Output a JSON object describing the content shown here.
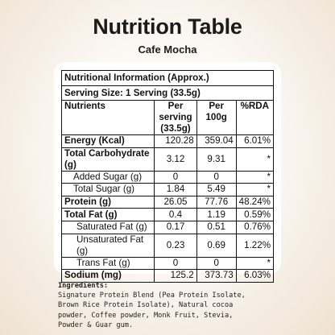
{
  "title": "Nutrition Table",
  "subtitle": "Cafe Mocha",
  "table": {
    "info": "Nutritional Information (Approx.)",
    "serving": "Serving Size: 1 Serving (33.5g)",
    "headers": {
      "nutrients": "Nutrients",
      "per_serving": [
        "Per",
        "serving",
        "(33.5g)"
      ],
      "per_100g": [
        "Per",
        "100g"
      ],
      "rda": "%RDA"
    },
    "rows": [
      {
        "name": "Energy (Kcal)",
        "serving": "120.28",
        "per100": "359.04",
        "rda": "6.01%"
      },
      {
        "name": "Total Carbohydrate (g)",
        "serving": "3.12",
        "per100": "9.31",
        "rda": "*"
      },
      {
        "name": "Added Sugar (g)",
        "serving": "0",
        "per100": "0",
        "rda": "*"
      },
      {
        "name": "Total Sugar (g)",
        "serving": "1.84",
        "per100": "5.49",
        "rda": "*"
      },
      {
        "name": "Protein (g)",
        "serving": "26.05",
        "per100": "77.76",
        "rda": "48.24%"
      },
      {
        "name": "Total Fat (g)",
        "serving": "0.4",
        "per100": "1.19",
        "rda": "0.59%"
      },
      {
        "name": "Saturated Fat (g)",
        "serving": "0.17",
        "per100": "0.51",
        "rda": "0.76%"
      },
      {
        "name": "Unsaturated Fat (g)",
        "serving": "0.23",
        "per100": "0.69",
        "rda": "1.22%"
      },
      {
        "name": "Trans Fat (g)",
        "serving": "0",
        "per100": "0",
        "rda": "*"
      },
      {
        "name": "Sodium (mg)",
        "serving": "125.2",
        "per100": "373.73",
        "rda": "6.03%"
      }
    ]
  },
  "ingredients": {
    "title": "Ingredients:",
    "lines": [
      "Signature Protein Blend (Pea Protein Isolate,",
      "Brown Rice Protein Isolate), Natural cocoa",
      "powder, Coffee powder, Monk Fruit, Stevia,",
      "Powder & Guar gum."
    ]
  }
}
